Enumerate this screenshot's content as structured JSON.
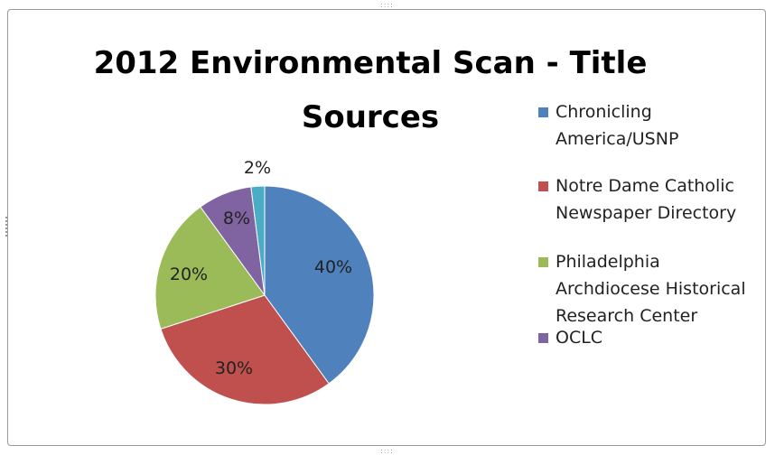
{
  "chart_data": {
    "type": "pie",
    "title": "2012 Environmental Scan - Title Sources",
    "title_lines": [
      "2012 Environmental Scan - Title",
      "Sources"
    ],
    "slices": [
      {
        "label": "Chronicling America/USNP",
        "label_lines": [
          "Chronicling",
          "America/USNP"
        ],
        "value": 40,
        "display": "40%",
        "color": "#4f81bd"
      },
      {
        "label": "Notre Dame Catholic Newspaper Directory",
        "label_lines": [
          "Notre Dame Catholic",
          "Newspaper Directory"
        ],
        "value": 30,
        "display": "30%",
        "color": "#c0504d"
      },
      {
        "label": "Philadelphia Archdiocese Historical Research Center",
        "label_lines": [
          "Philadelphia",
          "Archdiocese Historical",
          "Research Center"
        ],
        "value": 20,
        "display": "20%",
        "color": "#9bbb59"
      },
      {
        "label": "OCLC",
        "label_lines": [
          "OCLC"
        ],
        "value": 8,
        "display": "8%",
        "color": "#8064a2"
      },
      {
        "label": "",
        "label_lines": [],
        "value": 2,
        "display": "2%",
        "color": "#4bacc6"
      }
    ],
    "legend_position": "right"
  }
}
